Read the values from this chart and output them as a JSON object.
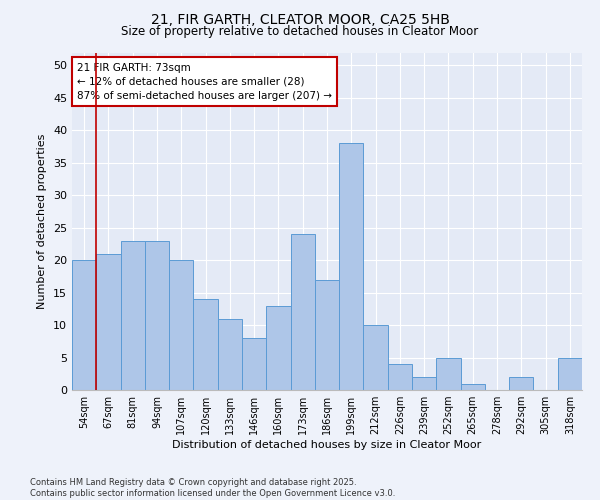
{
  "title1": "21, FIR GARTH, CLEATOR MOOR, CA25 5HB",
  "title2": "Size of property relative to detached houses in Cleator Moor",
  "xlabel": "Distribution of detached houses by size in Cleator Moor",
  "ylabel": "Number of detached properties",
  "categories": [
    "54sqm",
    "67sqm",
    "81sqm",
    "94sqm",
    "107sqm",
    "120sqm",
    "133sqm",
    "146sqm",
    "160sqm",
    "173sqm",
    "186sqm",
    "199sqm",
    "212sqm",
    "226sqm",
    "239sqm",
    "252sqm",
    "265sqm",
    "278sqm",
    "292sqm",
    "305sqm",
    "318sqm"
  ],
  "values": [
    20,
    21,
    23,
    23,
    20,
    14,
    11,
    8,
    13,
    24,
    17,
    38,
    10,
    4,
    2,
    5,
    1,
    0,
    2,
    0,
    5
  ],
  "bar_color": "#aec6e8",
  "bar_edge_color": "#5b9bd5",
  "vline_color": "#c00000",
  "annotation_title": "21 FIR GARTH: 73sqm",
  "annotation_line1": "← 12% of detached houses are smaller (28)",
  "annotation_line2": "87% of semi-detached houses are larger (207) →",
  "annotation_box_color": "#c00000",
  "ylim": [
    0,
    52
  ],
  "yticks": [
    0,
    5,
    10,
    15,
    20,
    25,
    30,
    35,
    40,
    45,
    50
  ],
  "footer1": "Contains HM Land Registry data © Crown copyright and database right 2025.",
  "footer2": "Contains public sector information licensed under the Open Government Licence v3.0.",
  "bg_color": "#eef2fa",
  "plot_bg_color": "#e4eaf6"
}
